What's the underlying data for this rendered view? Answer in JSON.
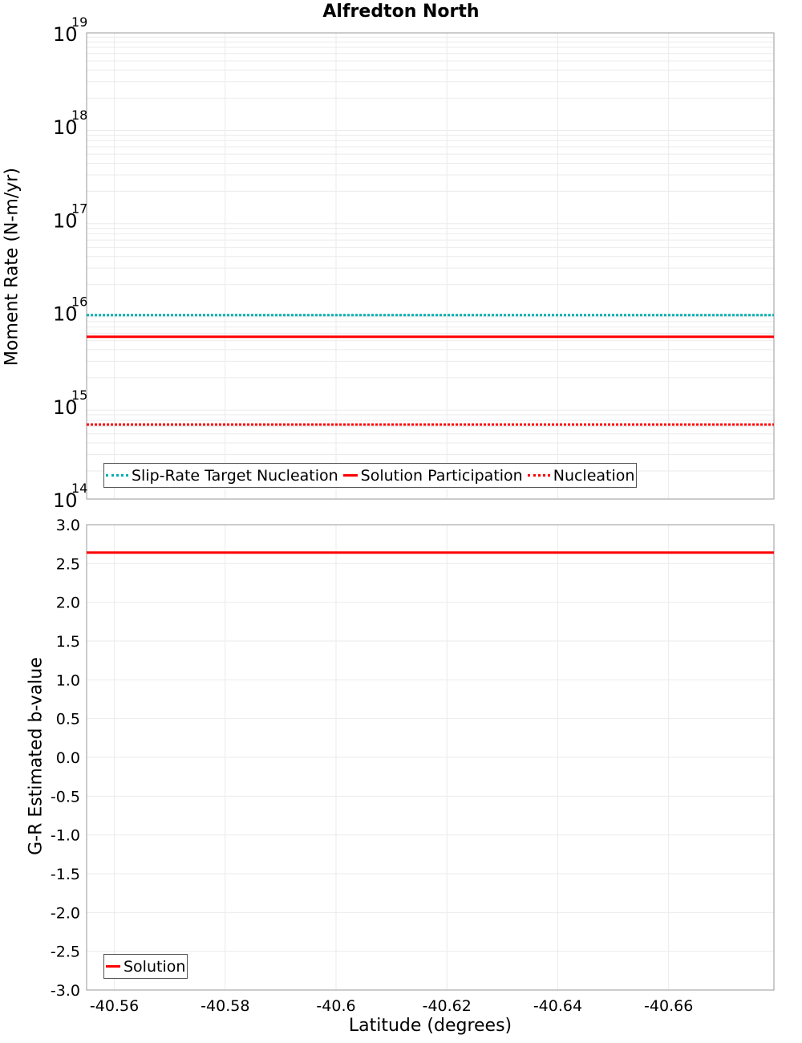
{
  "title": "Alfredton North",
  "chart_data": [
    {
      "type": "line",
      "title": "Alfredton North",
      "xlabel": "Latitude (degrees)",
      "ylabel": "Moment Rate (N-m/yr)",
      "yscale": "log",
      "ylim": [
        100000000000000.0,
        1e+19
      ],
      "xlim": [
        -40.555,
        -40.679
      ],
      "x_reversed_direction": true,
      "grid": true,
      "y_ticks": [
        "10^19",
        "10^18",
        "10^17",
        "10^16",
        "10^15",
        "10^14"
      ],
      "x": [
        -40.555,
        -40.679
      ],
      "series": [
        {
          "name": "Slip-Rate Target Nucleation",
          "values": [
            9400000000000000.0,
            9400000000000000.0
          ],
          "color": "#00b0b0",
          "style": "dotted"
        },
        {
          "name": "Solution Participation",
          "values": [
            5500000000000000.0,
            5500000000000000.0
          ],
          "color": "#ff0000",
          "style": "solid"
        },
        {
          "name": "Nucleation",
          "values": [
            630000000000000.0,
            630000000000000.0
          ],
          "color": "#ff0000",
          "style": "dotted"
        }
      ],
      "legend_position": "lower-left"
    },
    {
      "type": "line",
      "xlabel": "Latitude (degrees)",
      "ylabel": "G-R Estimated b-value",
      "ylim": [
        -3.0,
        3.0
      ],
      "xlim": [
        -40.555,
        -40.679
      ],
      "grid": true,
      "y_ticks": [
        "3.0",
        "2.5",
        "2.0",
        "1.5",
        "1.0",
        "0.5",
        "0.0",
        "-0.5",
        "-1.0",
        "-1.5",
        "-2.0",
        "-2.5",
        "-3.0"
      ],
      "x_ticks": [
        "-40.56",
        "-40.58",
        "-40.6",
        "-40.62",
        "-40.64",
        "-40.66"
      ],
      "x": [
        -40.555,
        -40.679
      ],
      "series": [
        {
          "name": "Solution",
          "values": [
            2.64,
            2.64
          ],
          "color": "#ff0000",
          "style": "solid"
        }
      ],
      "legend_position": "lower-left"
    }
  ],
  "top": {
    "ylabel": "Moment Rate (N-m/yr)",
    "ticks": [
      {
        "base": "10",
        "exp": "19"
      },
      {
        "base": "10",
        "exp": "18"
      },
      {
        "base": "10",
        "exp": "17"
      },
      {
        "base": "10",
        "exp": "16"
      },
      {
        "base": "10",
        "exp": "15"
      },
      {
        "base": "10",
        "exp": "14"
      }
    ],
    "legend": [
      "Slip-Rate Target Nucleation",
      "Solution Participation",
      "Nucleation"
    ]
  },
  "bottom": {
    "ylabel": "G-R Estimated b-value",
    "ticks": [
      "3.0",
      "2.5",
      "2.0",
      "1.5",
      "1.0",
      "0.5",
      "0.0",
      "-0.5",
      "-1.0",
      "-1.5",
      "-2.0",
      "-2.5",
      "-3.0"
    ],
    "legend": [
      "Solution"
    ]
  },
  "xaxis": {
    "label": "Latitude (degrees)",
    "ticks": [
      "-40.56",
      "-40.58",
      "-40.6",
      "-40.62",
      "-40.64",
      "-40.66"
    ]
  },
  "colors": {
    "cyan": "#00b0b0",
    "red": "#ff0000",
    "grid": "#ebebeb",
    "frame": "#aaaaaa"
  }
}
